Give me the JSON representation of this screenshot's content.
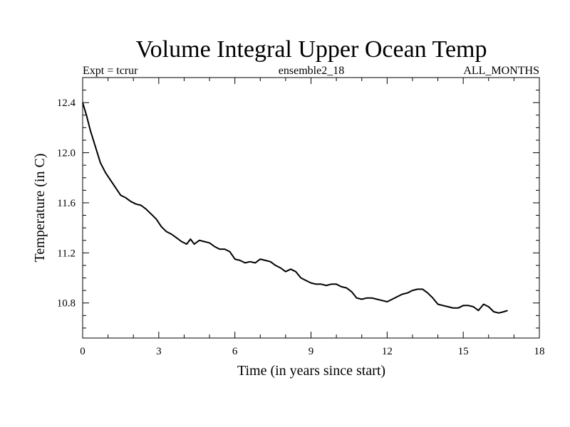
{
  "chart_data": {
    "type": "line",
    "title": "Volume Integral Upper Ocean Temp",
    "subtitle_left": "Expt = tcrur",
    "subtitle_center": "ensemble2_18",
    "subtitle_right": "ALL_MONTHS",
    "xlabel": "Time (in years since start)",
    "ylabel": "Temperature (in C)",
    "xlim": [
      0,
      18
    ],
    "ylim": [
      10.52,
      12.6
    ],
    "x_ticks": [
      0,
      3,
      6,
      9,
      12,
      15,
      18
    ],
    "x_tick_labels": [
      "0",
      "3",
      "6",
      "9",
      "12",
      "15",
      "18"
    ],
    "y_ticks": [
      10.8,
      11.2,
      11.6,
      12.0,
      12.4
    ],
    "y_tick_labels": [
      "10.8",
      "11.2",
      "11.6",
      "12.0",
      "12.4"
    ],
    "grid": false,
    "line_color": "#000000",
    "series": [
      {
        "x": [
          0.0,
          0.15,
          0.3,
          0.5,
          0.7,
          0.9,
          1.1,
          1.3,
          1.5,
          1.7,
          1.9,
          2.1,
          2.3,
          2.5,
          2.7,
          2.9,
          3.1,
          3.3,
          3.5,
          3.7,
          3.9,
          4.1,
          4.25,
          4.4,
          4.6,
          4.8,
          5.0,
          5.2,
          5.4,
          5.6,
          5.8,
          6.0,
          6.2,
          6.4,
          6.6,
          6.8,
          7.0,
          7.2,
          7.4,
          7.6,
          7.8,
          8.0,
          8.2,
          8.4,
          8.6,
          8.8,
          9.0,
          9.2,
          9.4,
          9.6,
          9.8,
          10.0,
          10.2,
          10.4,
          10.6,
          10.8,
          11.0,
          11.2,
          11.4,
          11.6,
          11.8,
          12.0,
          12.2,
          12.4,
          12.6,
          12.8,
          13.0,
          13.2,
          13.4,
          13.6,
          13.8,
          14.0,
          14.2,
          14.4,
          14.6,
          14.8,
          15.0,
          15.2,
          15.4,
          15.6,
          15.8,
          16.0,
          16.2,
          16.4,
          16.6,
          16.75
        ],
        "y": [
          12.4,
          12.3,
          12.18,
          12.05,
          11.92,
          11.84,
          11.78,
          11.72,
          11.66,
          11.64,
          11.61,
          11.59,
          11.58,
          11.55,
          11.51,
          11.47,
          11.41,
          11.37,
          11.35,
          11.32,
          11.29,
          11.27,
          11.31,
          11.27,
          11.3,
          11.29,
          11.28,
          11.25,
          11.23,
          11.23,
          11.21,
          11.15,
          11.14,
          11.12,
          11.13,
          11.12,
          11.15,
          11.14,
          11.13,
          11.1,
          11.08,
          11.05,
          11.07,
          11.05,
          11.0,
          10.98,
          10.96,
          10.95,
          10.95,
          10.94,
          10.95,
          10.95,
          10.93,
          10.92,
          10.89,
          10.84,
          10.83,
          10.84,
          10.84,
          10.83,
          10.82,
          10.81,
          10.83,
          10.85,
          10.87,
          10.88,
          10.9,
          10.91,
          10.91,
          10.88,
          10.84,
          10.79,
          10.78,
          10.77,
          10.76,
          10.76,
          10.78,
          10.78,
          10.77,
          10.74,
          10.79,
          10.77,
          10.73,
          10.72,
          10.73,
          10.74
        ]
      }
    ]
  }
}
